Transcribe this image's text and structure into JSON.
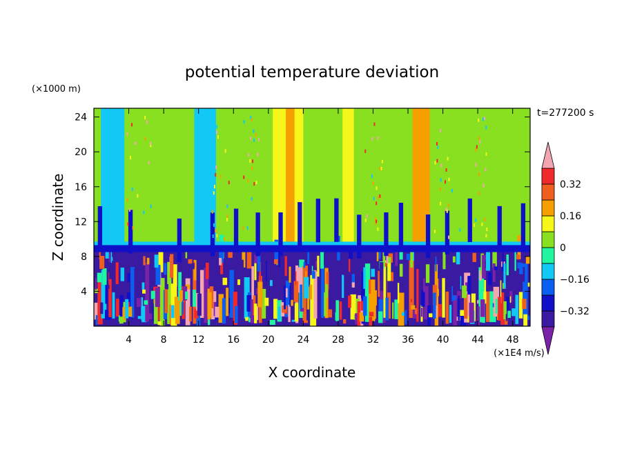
{
  "chart_data": {
    "type": "heatmap",
    "title": "potential temperature deviation",
    "xlabel": "X coordinate",
    "ylabel": "Z coordinate",
    "x_unit": "(×1E4 m/s)",
    "y_unit": "(×1000 m)",
    "time_label": "t=277200 s",
    "xlim": [
      0,
      50
    ],
    "ylim": [
      0,
      25
    ],
    "x_ticks": [
      4,
      8,
      12,
      16,
      20,
      24,
      28,
      32,
      36,
      40,
      44,
      48
    ],
    "y_ticks": [
      4,
      8,
      12,
      16,
      20,
      24
    ],
    "x_tick_labels": [
      "4",
      "8",
      "12",
      "16",
      "20",
      "24",
      "28",
      "32",
      "36",
      "40",
      "44",
      "48"
    ],
    "y_tick_labels": [
      "4",
      "8",
      "12",
      "16",
      "20",
      "24"
    ],
    "tropopause_height": 8.8,
    "colorbar": {
      "levels": [
        -0.48,
        -0.4,
        -0.32,
        -0.24,
        -0.16,
        -0.08,
        0,
        0.08,
        0.16,
        0.24,
        0.32,
        0.4
      ],
      "colors": [
        "#7a22a8",
        "#3a1aa0",
        "#1010c8",
        "#0a5ef0",
        "#12c8f5",
        "#22f5a0",
        "#88e020",
        "#f6f61a",
        "#f5a000",
        "#ef6020",
        "#f02a2a",
        "#f4a6b0"
      ],
      "tick_labels": [
        "0.32",
        "0.16",
        "0",
        "-0.16",
        "-0.32"
      ],
      "tick_values": [
        0.32,
        0.16,
        0,
        -0.16,
        -0.32
      ]
    },
    "upper_bands": [
      {
        "x0": 0.0,
        "x1": 0.8,
        "value": 0.0
      },
      {
        "x0": 0.8,
        "x1": 3.5,
        "value": -0.11
      },
      {
        "x0": 3.5,
        "x1": 5.5,
        "value": 0.03
      },
      {
        "x0": 5.5,
        "x1": 11.5,
        "value": 0.0
      },
      {
        "x0": 11.5,
        "x1": 14.0,
        "value": -0.11
      },
      {
        "x0": 14.0,
        "x1": 17.5,
        "value": 0.0
      },
      {
        "x0": 17.5,
        "x1": 20.5,
        "value": 0.03
      },
      {
        "x0": 20.5,
        "x1": 22.0,
        "value": 0.12
      },
      {
        "x0": 22.0,
        "x1": 23.0,
        "value": 0.2
      },
      {
        "x0": 23.0,
        "x1": 24.0,
        "value": 0.12
      },
      {
        "x0": 24.0,
        "x1": 26.5,
        "value": 0.03
      },
      {
        "x0": 26.5,
        "x1": 28.5,
        "value": 0.0
      },
      {
        "x0": 28.5,
        "x1": 29.8,
        "value": 0.12
      },
      {
        "x0": 29.8,
        "x1": 32.0,
        "value": 0.03
      },
      {
        "x0": 32.0,
        "x1": 33.5,
        "value": 0.0
      },
      {
        "x0": 33.5,
        "x1": 36.5,
        "value": 0.03
      },
      {
        "x0": 36.5,
        "x1": 38.5,
        "value": 0.2
      },
      {
        "x0": 38.5,
        "x1": 40.0,
        "value": 0.03
      },
      {
        "x0": 40.0,
        "x1": 50.0,
        "value": 0.0
      }
    ]
  }
}
